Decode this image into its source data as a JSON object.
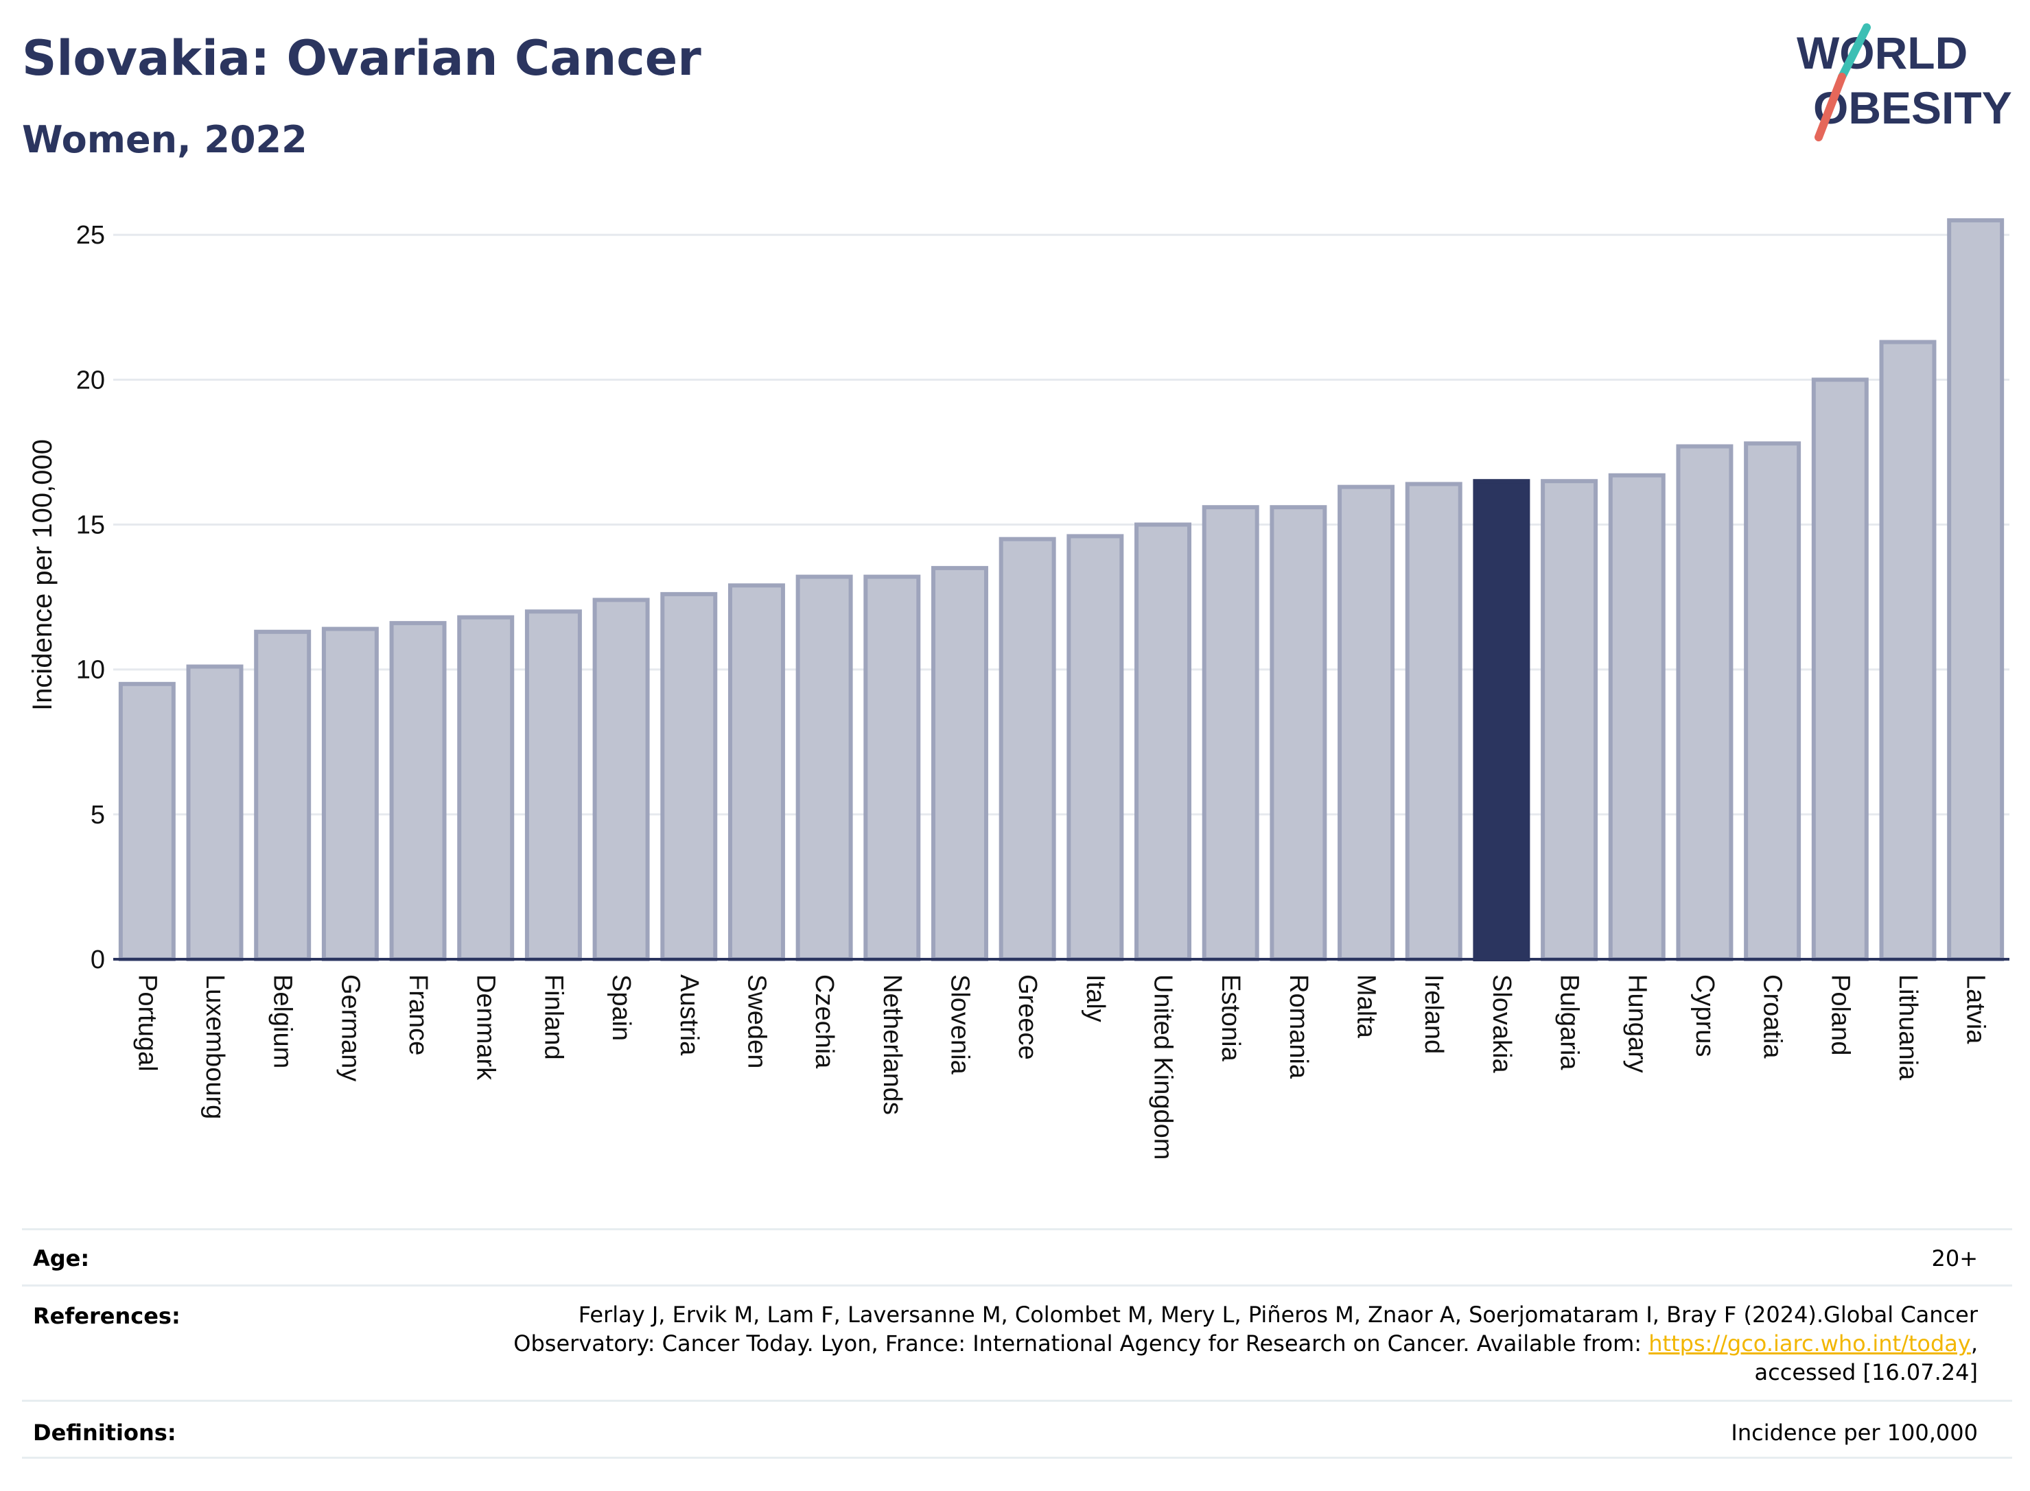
{
  "header": {
    "title": "Slovakia: Ovarian Cancer",
    "subtitle": "Women, 2022"
  },
  "logo": {
    "line1": "WORLD",
    "line2": "OBESITY",
    "colors": {
      "text": "#2b355f",
      "slash_top": "#3cbfb4",
      "slash_bottom": "#e5675a"
    }
  },
  "chart_data": {
    "type": "bar",
    "ylabel": "Incidence per 100,000",
    "xlabel": "",
    "ylim": [
      0,
      26
    ],
    "yticks": [
      0,
      5,
      10,
      15,
      20,
      25
    ],
    "grid": true,
    "highlight": "Slovakia",
    "colors": {
      "bar": "#bfc3d1",
      "bar_edge": "#9ea4bc",
      "highlight": "#2b355f",
      "grid": "#e6e9ee",
      "axis": "#2b355f"
    },
    "categories": [
      "Portugal",
      "Luxembourg",
      "Belgium",
      "Germany",
      "France",
      "Denmark",
      "Finland",
      "Spain",
      "Austria",
      "Sweden",
      "Czechia",
      "Netherlands",
      "Slovenia",
      "Greece",
      "Italy",
      "United Kingdom",
      "Estonia",
      "Romania",
      "Malta",
      "Ireland",
      "Slovakia",
      "Bulgaria",
      "Hungary",
      "Cyprus",
      "Croatia",
      "Poland",
      "Lithuania",
      "Latvia"
    ],
    "values": [
      9.5,
      10.1,
      11.3,
      11.4,
      11.6,
      11.8,
      12.0,
      12.4,
      12.6,
      12.9,
      13.2,
      13.2,
      13.5,
      14.5,
      14.6,
      15.0,
      15.6,
      15.6,
      16.3,
      16.4,
      16.5,
      16.5,
      16.7,
      17.7,
      17.8,
      20.0,
      21.3,
      25.5
    ]
  },
  "info": {
    "age_label": "Age:",
    "age_value": "20+",
    "references_label": "References:",
    "references_line1": "Ferlay J, Ervik M, Lam F, Laversanne M, Colombet M, Mery L, Piñeros M, Znaor A, Soerjomataram I, Bray F (2024).Global Cancer",
    "references_line2_pre": "Observatory: Cancer Today. Lyon, France: International Agency for Research on Cancer. Available from: ",
    "references_link": "https://gco.iarc.who.int/today",
    "references_line2_post": ",",
    "references_line3": "accessed [16.07.24]",
    "definitions_label": "Definitions:",
    "definitions_value": "Incidence per 100,000"
  }
}
